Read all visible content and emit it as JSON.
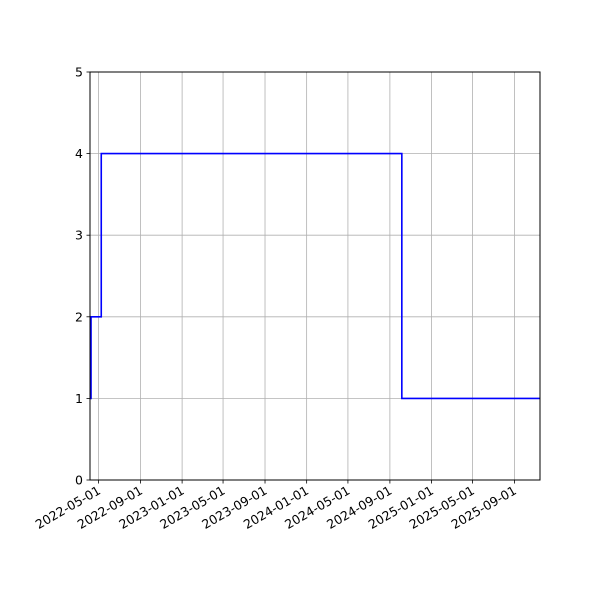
{
  "colors": {
    "line": "#0000ff",
    "grid": "#b0b0b0",
    "axis": "#000000",
    "background": "#ffffff"
  },
  "chart_data": {
    "type": "line",
    "drawstyle": "steps-post",
    "title": "",
    "xlabel": "",
    "ylabel": "",
    "grid": true,
    "xlim": [
      "2022-04-06",
      "2025-11-15"
    ],
    "ylim": [
      0,
      5
    ],
    "xticks": [
      {
        "date": "2022-05-01",
        "label": "2022-05-01"
      },
      {
        "date": "2022-09-01",
        "label": "2022-09-01"
      },
      {
        "date": "2023-01-01",
        "label": "2023-01-01"
      },
      {
        "date": "2023-05-01",
        "label": "2023-05-01"
      },
      {
        "date": "2023-09-01",
        "label": "2023-09-01"
      },
      {
        "date": "2024-01-01",
        "label": "2024-01-01"
      },
      {
        "date": "2024-05-01",
        "label": "2024-05-01"
      },
      {
        "date": "2024-09-01",
        "label": "2024-09-01"
      },
      {
        "date": "2025-01-01",
        "label": "2025-01-01"
      },
      {
        "date": "2025-05-01",
        "label": "2025-05-01"
      },
      {
        "date": "2025-09-01",
        "label": "2025-09-01"
      }
    ],
    "yticks": [
      {
        "value": 0,
        "label": "0"
      },
      {
        "value": 1,
        "label": "1"
      },
      {
        "value": 2,
        "label": "2"
      },
      {
        "value": 3,
        "label": "3"
      },
      {
        "value": 4,
        "label": "4"
      },
      {
        "value": 5,
        "label": "5"
      }
    ],
    "series": [
      {
        "x": [
          "2022-04-06",
          "2022-04-09",
          "2022-05-09",
          "2024-10-06",
          "2025-11-15"
        ],
        "y": [
          1,
          2,
          4,
          1,
          1
        ]
      }
    ]
  }
}
